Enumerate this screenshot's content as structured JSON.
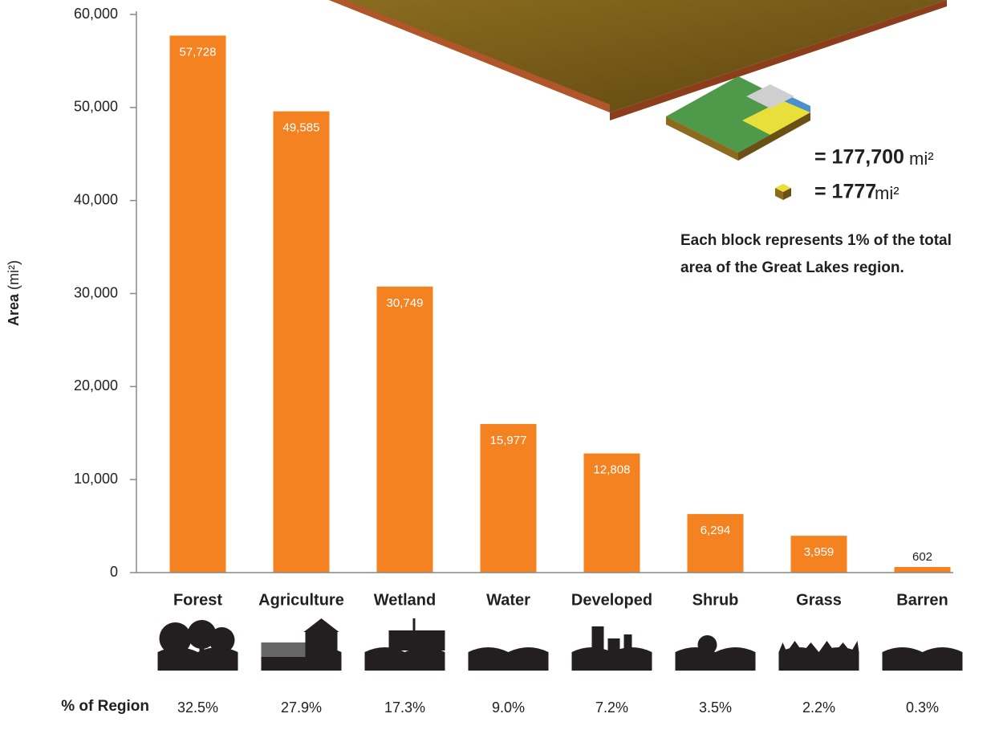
{
  "chart_data": {
    "type": "bar",
    "y_label": "Area",
    "y_label_unit": "(mi²)",
    "categories": [
      "Forest",
      "Agriculture",
      "Wetland",
      "Water",
      "Developed",
      "Shrub",
      "Grass",
      "Barren"
    ],
    "values": [
      57728,
      49585,
      30749,
      15977,
      12808,
      6294,
      3959,
      602
    ],
    "value_labels": [
      "57,728",
      "49,585",
      "30,749",
      "15,977",
      "12,808",
      "6,294",
      "3,959",
      "602"
    ],
    "color": "#f58220",
    "ylim": [
      0,
      60000
    ],
    "yticks": [
      0,
      {
        "value": 10000,
        "label": "10,000"
      },
      {
        "value": 20000,
        "label": "20,000"
      },
      {
        "value": 30000,
        "label": "30,000"
      },
      {
        "value": 40000,
        "label": "40,000"
      },
      {
        "value": 50000,
        "label": "50,000"
      },
      {
        "value": 60000,
        "label": "60,000"
      }
    ],
    "share_title": "% of Region",
    "share": [
      32.5,
      27.9,
      17.3,
      9.0,
      7.2,
      3.5,
      2.2,
      0.3
    ],
    "share_labels": [
      "32.5%",
      "27.9%",
      "17.3%",
      "9.0%",
      "7.2%",
      "3.5%",
      "2.2%",
      "0.3%"
    ],
    "legend": {
      "total": "= 177,700",
      "block": "= 1777",
      "unit": "mi²",
      "note": [
        "Each block represents 1% of the total",
        "area of the Great Lakes region."
      ]
    }
  }
}
